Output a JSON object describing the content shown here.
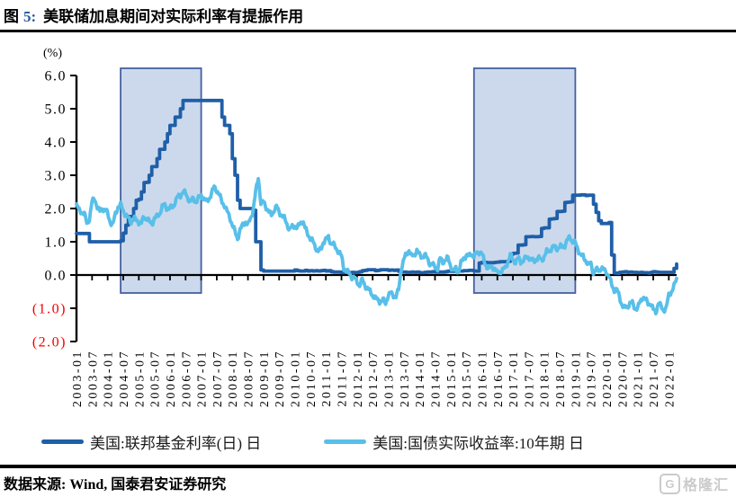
{
  "title": {
    "prefix": "图",
    "number": "5:",
    "text": "美联储加息期间对实际利率有提振作用"
  },
  "unit_label": "(%)",
  "legend": [
    {
      "label": "美国:联邦基金利率(日) 日",
      "color": "#1f5fa8"
    },
    {
      "label": "美国:国债实际收益率:10年期 日",
      "color": "#58bfe9"
    }
  ],
  "footer": {
    "source": "数据来源: Wind, 国泰君安证券研究",
    "logo_g": "G",
    "logo_text": "格隆汇"
  },
  "chart_data": {
    "type": "line",
    "title": "美联储加息期间对实际利率有提振作用",
    "unit_label": "(%)",
    "xlabel": "",
    "ylabel": "(%)",
    "ylim": [
      -2,
      6
    ],
    "grid": false,
    "legend_position": "bottom",
    "start_month": "2003-01",
    "frequency": "monthly",
    "x_tick_labels": [
      "2003-01",
      "2003-07",
      "2004-01",
      "2004-07",
      "2005-01",
      "2005-07",
      "2006-01",
      "2006-07",
      "2007-01",
      "2007-07",
      "2008-01",
      "2008-07",
      "2009-01",
      "2009-07",
      "2010-01",
      "2010-07",
      "2011-01",
      "2011-07",
      "2012-01",
      "2012-07",
      "2013-01",
      "2013-07",
      "2014-01",
      "2014-07",
      "2015-01",
      "2015-07",
      "2016-01",
      "2016-07",
      "2017-01",
      "2017-07",
      "2018-01",
      "2018-07",
      "2019-01",
      "2019-07",
      "2020-01",
      "2020-07",
      "2021-01",
      "2021-07",
      "2022-01"
    ],
    "y_ticks": [
      {
        "value": 6,
        "label": "6.0",
        "negative": false
      },
      {
        "value": 5,
        "label": "5.0",
        "negative": false
      },
      {
        "value": 4,
        "label": "4.0",
        "negative": false
      },
      {
        "value": 3,
        "label": "3.0",
        "negative": false
      },
      {
        "value": 2,
        "label": "2.0",
        "negative": false
      },
      {
        "value": 1,
        "label": "1.0",
        "negative": false
      },
      {
        "value": 0,
        "label": "0.0",
        "negative": false
      },
      {
        "value": -1,
        "label": "(1.0)",
        "negative": true
      },
      {
        "value": -2,
        "label": "(2.0)",
        "negative": true
      }
    ],
    "negative_label_color": "#f40000",
    "highlight_regions": [
      {
        "from": "2004-06",
        "to": "2007-01"
      },
      {
        "from": "2015-10",
        "to": "2019-01"
      }
    ],
    "region_style": {
      "fill": "#ccd9ec",
      "stroke": "#44609f"
    },
    "series": [
      {
        "name": "美国:联邦基金利率(日) 日",
        "color": "#1f5fa8",
        "line_style": "step",
        "values": [
          1.25,
          1.25,
          1.25,
          1.25,
          1.25,
          1.0,
          1.0,
          1.0,
          1.0,
          1.0,
          1.0,
          1.0,
          1.0,
          1.0,
          1.0,
          1.0,
          1.0,
          1.03,
          1.26,
          1.5,
          1.76,
          1.76,
          2.0,
          2.25,
          2.28,
          2.5,
          2.78,
          2.79,
          3.0,
          3.26,
          3.26,
          3.5,
          3.78,
          3.78,
          4.0,
          4.25,
          4.5,
          4.5,
          4.75,
          4.75,
          5.0,
          5.25,
          5.25,
          5.25,
          5.25,
          5.25,
          5.25,
          5.25,
          5.25,
          5.25,
          5.25,
          5.25,
          5.25,
          5.25,
          5.25,
          5.25,
          4.75,
          4.5,
          4.5,
          4.25,
          3.5,
          3.0,
          2.25,
          2.0,
          2.0,
          2.0,
          2.0,
          2.0,
          1.95,
          1.0,
          1.0,
          0.15,
          0.12,
          0.12,
          0.12,
          0.12,
          0.12,
          0.12,
          0.12,
          0.12,
          0.12,
          0.12,
          0.12,
          0.12,
          0.15,
          0.13,
          0.12,
          0.12,
          0.14,
          0.12,
          0.13,
          0.12,
          0.13,
          0.12,
          0.13,
          0.14,
          0.12,
          0.13,
          0.1,
          0.09,
          0.09,
          0.09,
          0.07,
          0.1,
          0.08,
          0.07,
          0.08,
          0.07,
          0.08,
          0.1,
          0.13,
          0.14,
          0.16,
          0.16,
          0.16,
          0.13,
          0.14,
          0.16,
          0.16,
          0.16,
          0.14,
          0.15,
          0.14,
          0.15,
          0.11,
          0.09,
          0.09,
          0.08,
          0.08,
          0.09,
          0.08,
          0.09,
          0.07,
          0.07,
          0.08,
          0.09,
          0.09,
          0.1,
          0.09,
          0.09,
          0.09,
          0.09,
          0.1,
          0.12,
          0.11,
          0.11,
          0.11,
          0.12,
          0.12,
          0.13,
          0.13,
          0.14,
          0.14,
          0.12,
          0.12,
          0.36,
          0.38,
          0.38,
          0.37,
          0.37,
          0.37,
          0.38,
          0.39,
          0.4,
          0.4,
          0.4,
          0.41,
          0.62,
          0.65,
          0.66,
          0.9,
          0.9,
          0.91,
          1.15,
          1.15,
          1.16,
          1.15,
          1.15,
          1.16,
          1.4,
          1.42,
          1.42,
          1.68,
          1.69,
          1.7,
          1.91,
          1.91,
          1.92,
          2.18,
          2.19,
          2.2,
          2.4,
          2.4,
          2.4,
          2.41,
          2.41,
          2.39,
          2.4,
          2.4,
          2.13,
          1.88,
          1.63,
          1.55,
          1.55,
          1.55,
          1.58,
          0.6,
          0.06,
          0.05,
          0.08,
          0.09,
          0.1,
          0.08,
          0.09,
          0.08,
          0.08,
          0.07,
          0.08,
          0.07,
          0.07,
          0.06,
          0.08,
          0.1,
          0.09,
          0.08,
          0.08,
          0.08,
          0.08,
          0.08,
          0.08,
          0.2,
          0.33
        ]
      },
      {
        "name": "美国:国债实际收益率:10年期 日",
        "color": "#58bfe9",
        "line_style": "noisy",
        "values": [
          2.1,
          1.95,
          1.9,
          1.85,
          1.55,
          1.7,
          2.2,
          2.3,
          2.05,
          1.9,
          2.0,
          1.95,
          1.85,
          1.6,
          1.5,
          1.85,
          2.05,
          2.1,
          1.95,
          1.8,
          1.7,
          1.6,
          1.7,
          1.65,
          1.6,
          1.55,
          1.75,
          1.7,
          1.6,
          1.55,
          1.7,
          1.75,
          1.85,
          2.05,
          2.1,
          2.0,
          2.0,
          2.05,
          2.2,
          2.35,
          2.4,
          2.5,
          2.45,
          2.3,
          2.2,
          2.3,
          2.2,
          2.3,
          2.4,
          2.3,
          2.2,
          2.3,
          2.45,
          2.65,
          2.55,
          2.4,
          2.2,
          2.1,
          1.9,
          1.75,
          1.5,
          1.3,
          1.1,
          1.35,
          1.5,
          1.6,
          1.5,
          1.7,
          1.95,
          2.5,
          2.95,
          2.15,
          2.2,
          2.05,
          1.9,
          1.8,
          1.95,
          2.05,
          1.9,
          1.8,
          1.7,
          1.55,
          1.35,
          1.45,
          1.5,
          1.4,
          1.55,
          1.65,
          1.4,
          1.25,
          1.1,
          1.0,
          0.85,
          0.7,
          0.75,
          1.0,
          1.05,
          1.15,
          0.95,
          0.9,
          0.8,
          0.7,
          0.55,
          0.2,
          0.1,
          0.05,
          -0.05,
          -0.1,
          -0.2,
          -0.3,
          -0.15,
          -0.3,
          -0.4,
          -0.5,
          -0.6,
          -0.7,
          -0.75,
          -0.8,
          -0.75,
          -0.85,
          -0.6,
          -0.55,
          -0.6,
          -0.65,
          -0.45,
          0.2,
          0.45,
          0.65,
          0.75,
          0.55,
          0.6,
          0.75,
          0.6,
          0.55,
          0.6,
          0.5,
          0.35,
          0.3,
          0.25,
          0.2,
          0.5,
          0.4,
          0.45,
          0.5,
          0.3,
          0.1,
          0.2,
          0.1,
          0.35,
          0.5,
          0.6,
          0.55,
          0.65,
          0.55,
          0.65,
          0.7,
          0.65,
          0.4,
          0.25,
          0.2,
          0.25,
          0.2,
          0.05,
          0.1,
          0.15,
          0.2,
          0.4,
          0.6,
          0.45,
          0.4,
          0.5,
          0.4,
          0.45,
          0.5,
          0.55,
          0.45,
          0.4,
          0.5,
          0.5,
          0.45,
          0.55,
          0.7,
          0.75,
          0.8,
          0.85,
          0.8,
          0.85,
          0.85,
          0.9,
          1.05,
          1.15,
          1.0,
          0.95,
          0.8,
          0.6,
          0.55,
          0.45,
          0.3,
          0.35,
          0.05,
          0.15,
          0.15,
          0.2,
          0.15,
          0.1,
          -0.05,
          -0.3,
          -0.45,
          -0.45,
          -0.65,
          -0.9,
          -1.0,
          -0.95,
          -0.85,
          -0.85,
          -1.0,
          -1.0,
          -0.8,
          -0.65,
          -0.75,
          -0.85,
          -0.85,
          -1.05,
          -1.1,
          -0.85,
          -0.95,
          -1.05,
          -1.0,
          -0.6,
          -0.5,
          -0.35,
          -0.1
        ]
      }
    ]
  }
}
